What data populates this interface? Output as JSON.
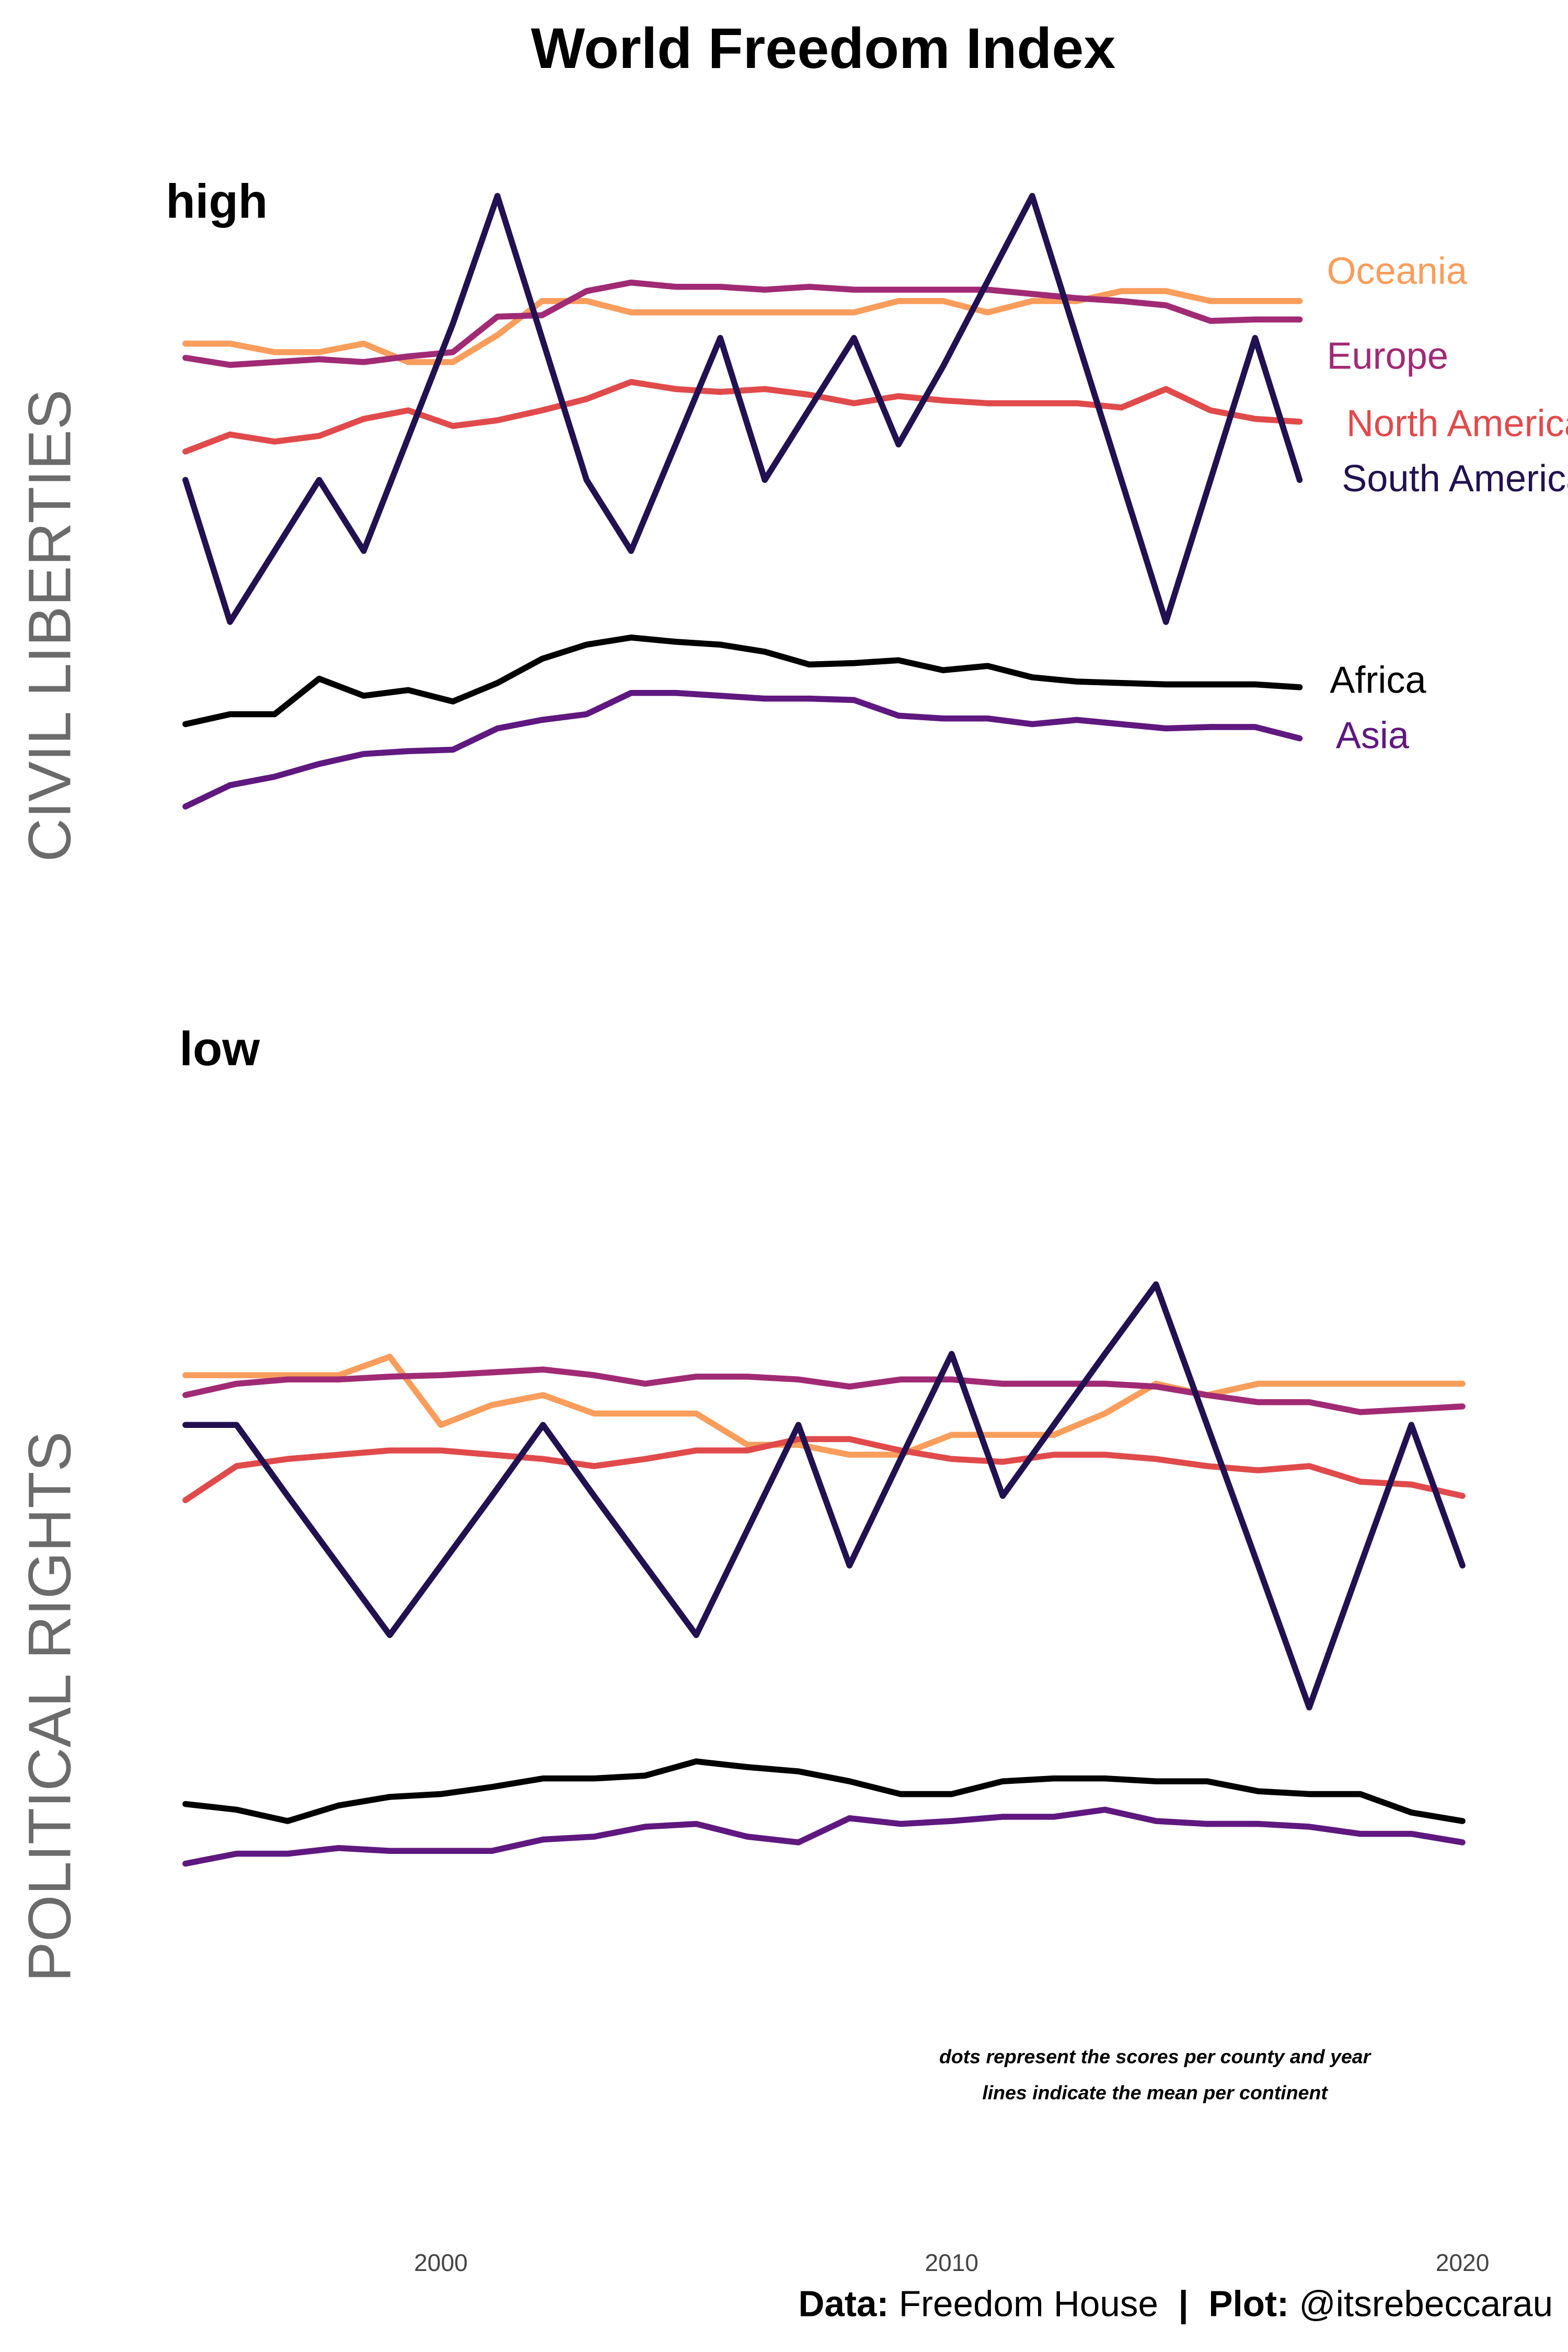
{
  "title": "World Freedom Index",
  "note": [
    "dots represent the scores per county and year",
    "lines indicate the mean per continent"
  ],
  "caption": {
    "data_label": "Data:",
    "data": "Freedom House",
    "separator": "|",
    "plot_label": "Plot:",
    "plot": "@itsrebeccarau"
  },
  "chart_data": [
    {
      "type": "line",
      "y_label": "CIVIL LIBERTIES",
      "annotations": [
        "high",
        "low"
      ],
      "x": [
        1995,
        1996,
        1997,
        1998,
        1999,
        2000,
        2001,
        2002,
        2003,
        2004,
        2005,
        2006,
        2007,
        2008,
        2009,
        2010,
        2011,
        2012,
        2013,
        2014,
        2015,
        2016,
        2017,
        2018,
        2019,
        2020
      ],
      "xlim": [
        1995,
        2020
      ],
      "ylim": [
        7.4,
        0.6
      ],
      "series": [
        {
          "name": "Oceania",
          "color": "#f99d5c",
          "values": [
            2.04,
            2.04,
            2.1,
            2.1,
            2.04,
            2.17,
            2.17,
            1.98,
            1.74,
            1.74,
            1.82,
            1.82,
            1.82,
            1.82,
            1.82,
            1.82,
            1.74,
            1.74,
            1.82,
            1.74,
            1.74,
            1.67,
            1.67,
            1.74,
            1.74,
            1.74
          ]
        },
        {
          "name": "Europe",
          "color": "#a12a75",
          "values": [
            2.14,
            2.19,
            2.17,
            2.15,
            2.17,
            2.13,
            2.1,
            1.85,
            1.84,
            1.67,
            1.61,
            1.64,
            1.64,
            1.66,
            1.64,
            1.66,
            1.66,
            1.66,
            1.66,
            1.69,
            1.72,
            1.74,
            1.77,
            1.88,
            1.87,
            1.87
          ]
        },
        {
          "name": "North America",
          "color": "#e14a4b",
          "values": [
            2.8,
            2.68,
            2.73,
            2.69,
            2.57,
            2.51,
            2.62,
            2.58,
            2.51,
            2.43,
            2.31,
            2.36,
            2.38,
            2.36,
            2.4,
            2.46,
            2.41,
            2.44,
            2.46,
            2.46,
            2.46,
            2.49,
            2.36,
            2.51,
            2.57,
            2.59
          ]
        },
        {
          "name": "South America",
          "color": "#221150",
          "values": [
            3.0,
            4.0,
            3.5,
            3.0,
            3.5,
            2.7,
            1.9,
            1.0,
            2.0,
            3.0,
            3.5,
            2.75,
            2.0,
            3.0,
            2.5,
            2.0,
            2.75,
            2.2,
            1.6,
            1.0,
            2.0,
            3.0,
            4.0,
            3.0,
            2.0,
            3.0
          ]
        },
        {
          "name": "Africa",
          "color": "#000000",
          "values": [
            4.72,
            4.65,
            4.65,
            4.4,
            4.52,
            4.48,
            4.56,
            4.43,
            4.26,
            4.16,
            4.11,
            4.14,
            4.16,
            4.21,
            4.3,
            4.29,
            4.27,
            4.34,
            4.31,
            4.39,
            4.42,
            4.43,
            4.44,
            4.44,
            4.44,
            4.46
          ]
        },
        {
          "name": "Asia",
          "color": "#5f187f",
          "values": [
            5.3,
            5.15,
            5.09,
            5.0,
            4.93,
            4.91,
            4.9,
            4.75,
            4.69,
            4.65,
            4.5,
            4.5,
            4.52,
            4.54,
            4.54,
            4.55,
            4.66,
            4.68,
            4.68,
            4.72,
            4.69,
            4.72,
            4.75,
            4.74,
            4.74,
            4.82
          ]
        }
      ]
    },
    {
      "type": "line",
      "y_label": "POLITICAL RIGHTS",
      "x": [
        1995,
        1996,
        1997,
        1998,
        1999,
        2000,
        2001,
        2002,
        2003,
        2004,
        2005,
        2006,
        2007,
        2008,
        2009,
        2010,
        2011,
        2012,
        2013,
        2014,
        2015,
        2016,
        2017,
        2018,
        2019,
        2020
      ],
      "xlim": [
        1995,
        2020
      ],
      "xticks": [
        2000,
        2010,
        2020
      ],
      "ylim": [
        7.4,
        0.6
      ],
      "series": [
        {
          "color": "#f99d5c",
          "values": [
            1.66,
            1.66,
            1.66,
            1.66,
            1.53,
            2.01,
            1.87,
            1.8,
            1.93,
            1.93,
            1.93,
            2.15,
            2.15,
            2.22,
            2.22,
            2.08,
            2.08,
            2.08,
            1.93,
            1.72,
            1.8,
            1.72,
            1.72,
            1.72,
            1.72,
            1.72
          ]
        },
        {
          "color": "#a12a75",
          "values": [
            1.8,
            1.72,
            1.69,
            1.69,
            1.67,
            1.66,
            1.64,
            1.62,
            1.66,
            1.72,
            1.67,
            1.67,
            1.69,
            1.74,
            1.69,
            1.69,
            1.72,
            1.72,
            1.72,
            1.74,
            1.8,
            1.85,
            1.85,
            1.92,
            1.9,
            1.88
          ]
        },
        {
          "color": "#e14a4b",
          "values": [
            2.54,
            2.3,
            2.25,
            2.22,
            2.19,
            2.19,
            2.22,
            2.25,
            2.3,
            2.25,
            2.19,
            2.19,
            2.11,
            2.11,
            2.19,
            2.25,
            2.27,
            2.22,
            2.22,
            2.25,
            2.3,
            2.33,
            2.3,
            2.41,
            2.43,
            2.51
          ]
        },
        {
          "color": "#221150",
          "values": [
            2.01,
            2.01,
            2.51,
            3.0,
            3.49,
            3.0,
            2.51,
            2.01,
            2.51,
            3.0,
            3.49,
            2.75,
            2.01,
            3.0,
            2.25,
            1.51,
            2.51,
            2.01,
            1.51,
            1.02,
            2.01,
            3.0,
            4.0,
            3.0,
            2.01,
            3.0
          ]
        },
        {
          "color": "#000000",
          "values": [
            4.68,
            4.72,
            4.8,
            4.69,
            4.63,
            4.61,
            4.56,
            4.5,
            4.5,
            4.48,
            4.38,
            4.42,
            4.45,
            4.52,
            4.61,
            4.61,
            4.52,
            4.5,
            4.5,
            4.52,
            4.52,
            4.59,
            4.61,
            4.61,
            4.74,
            4.8
          ]
        },
        {
          "color": "#5f187f",
          "values": [
            5.1,
            5.03,
            5.03,
            4.99,
            5.01,
            5.01,
            5.01,
            4.93,
            4.91,
            4.84,
            4.82,
            4.91,
            4.95,
            4.78,
            4.82,
            4.8,
            4.77,
            4.77,
            4.72,
            4.8,
            4.82,
            4.82,
            4.84,
            4.89,
            4.89,
            4.95
          ]
        }
      ]
    }
  ]
}
